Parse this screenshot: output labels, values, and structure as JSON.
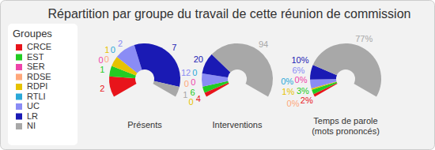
{
  "chart_data": {
    "type": "pie",
    "title": "Répartition par groupe du travail de cette réunion de commission",
    "legend": "left",
    "legend_title": "Groupes",
    "data_labels": true,
    "categories": [
      "CRCE",
      "EST",
      "SER",
      "RDSE",
      "RDPI",
      "RTLI",
      "UC",
      "LR",
      "NI"
    ],
    "colors": [
      "#e8141b",
      "#22cc22",
      "#ee44aa",
      "#ffa77a",
      "#e6c200",
      "#2aa8d8",
      "#8a8cf5",
      "#1a1ab4",
      "#a8a8a8"
    ],
    "series": [
      {
        "name": "Présents",
        "values": [
          2,
          1,
          0,
          0,
          1,
          0,
          2,
          7,
          1
        ]
      },
      {
        "name": "Interventions",
        "values": [
          4,
          6,
          0,
          0,
          0,
          0,
          12,
          20,
          94
        ]
      },
      {
        "name": "Temps de parole\n(mots prononcés)",
        "values": [
          2,
          3,
          0,
          0,
          1,
          0,
          6,
          10,
          77
        ],
        "value_labels": [
          "2%",
          "3%",
          "0%",
          "0%",
          "1%",
          "0%",
          "6%",
          "10%",
          "77%"
        ]
      }
    ]
  }
}
